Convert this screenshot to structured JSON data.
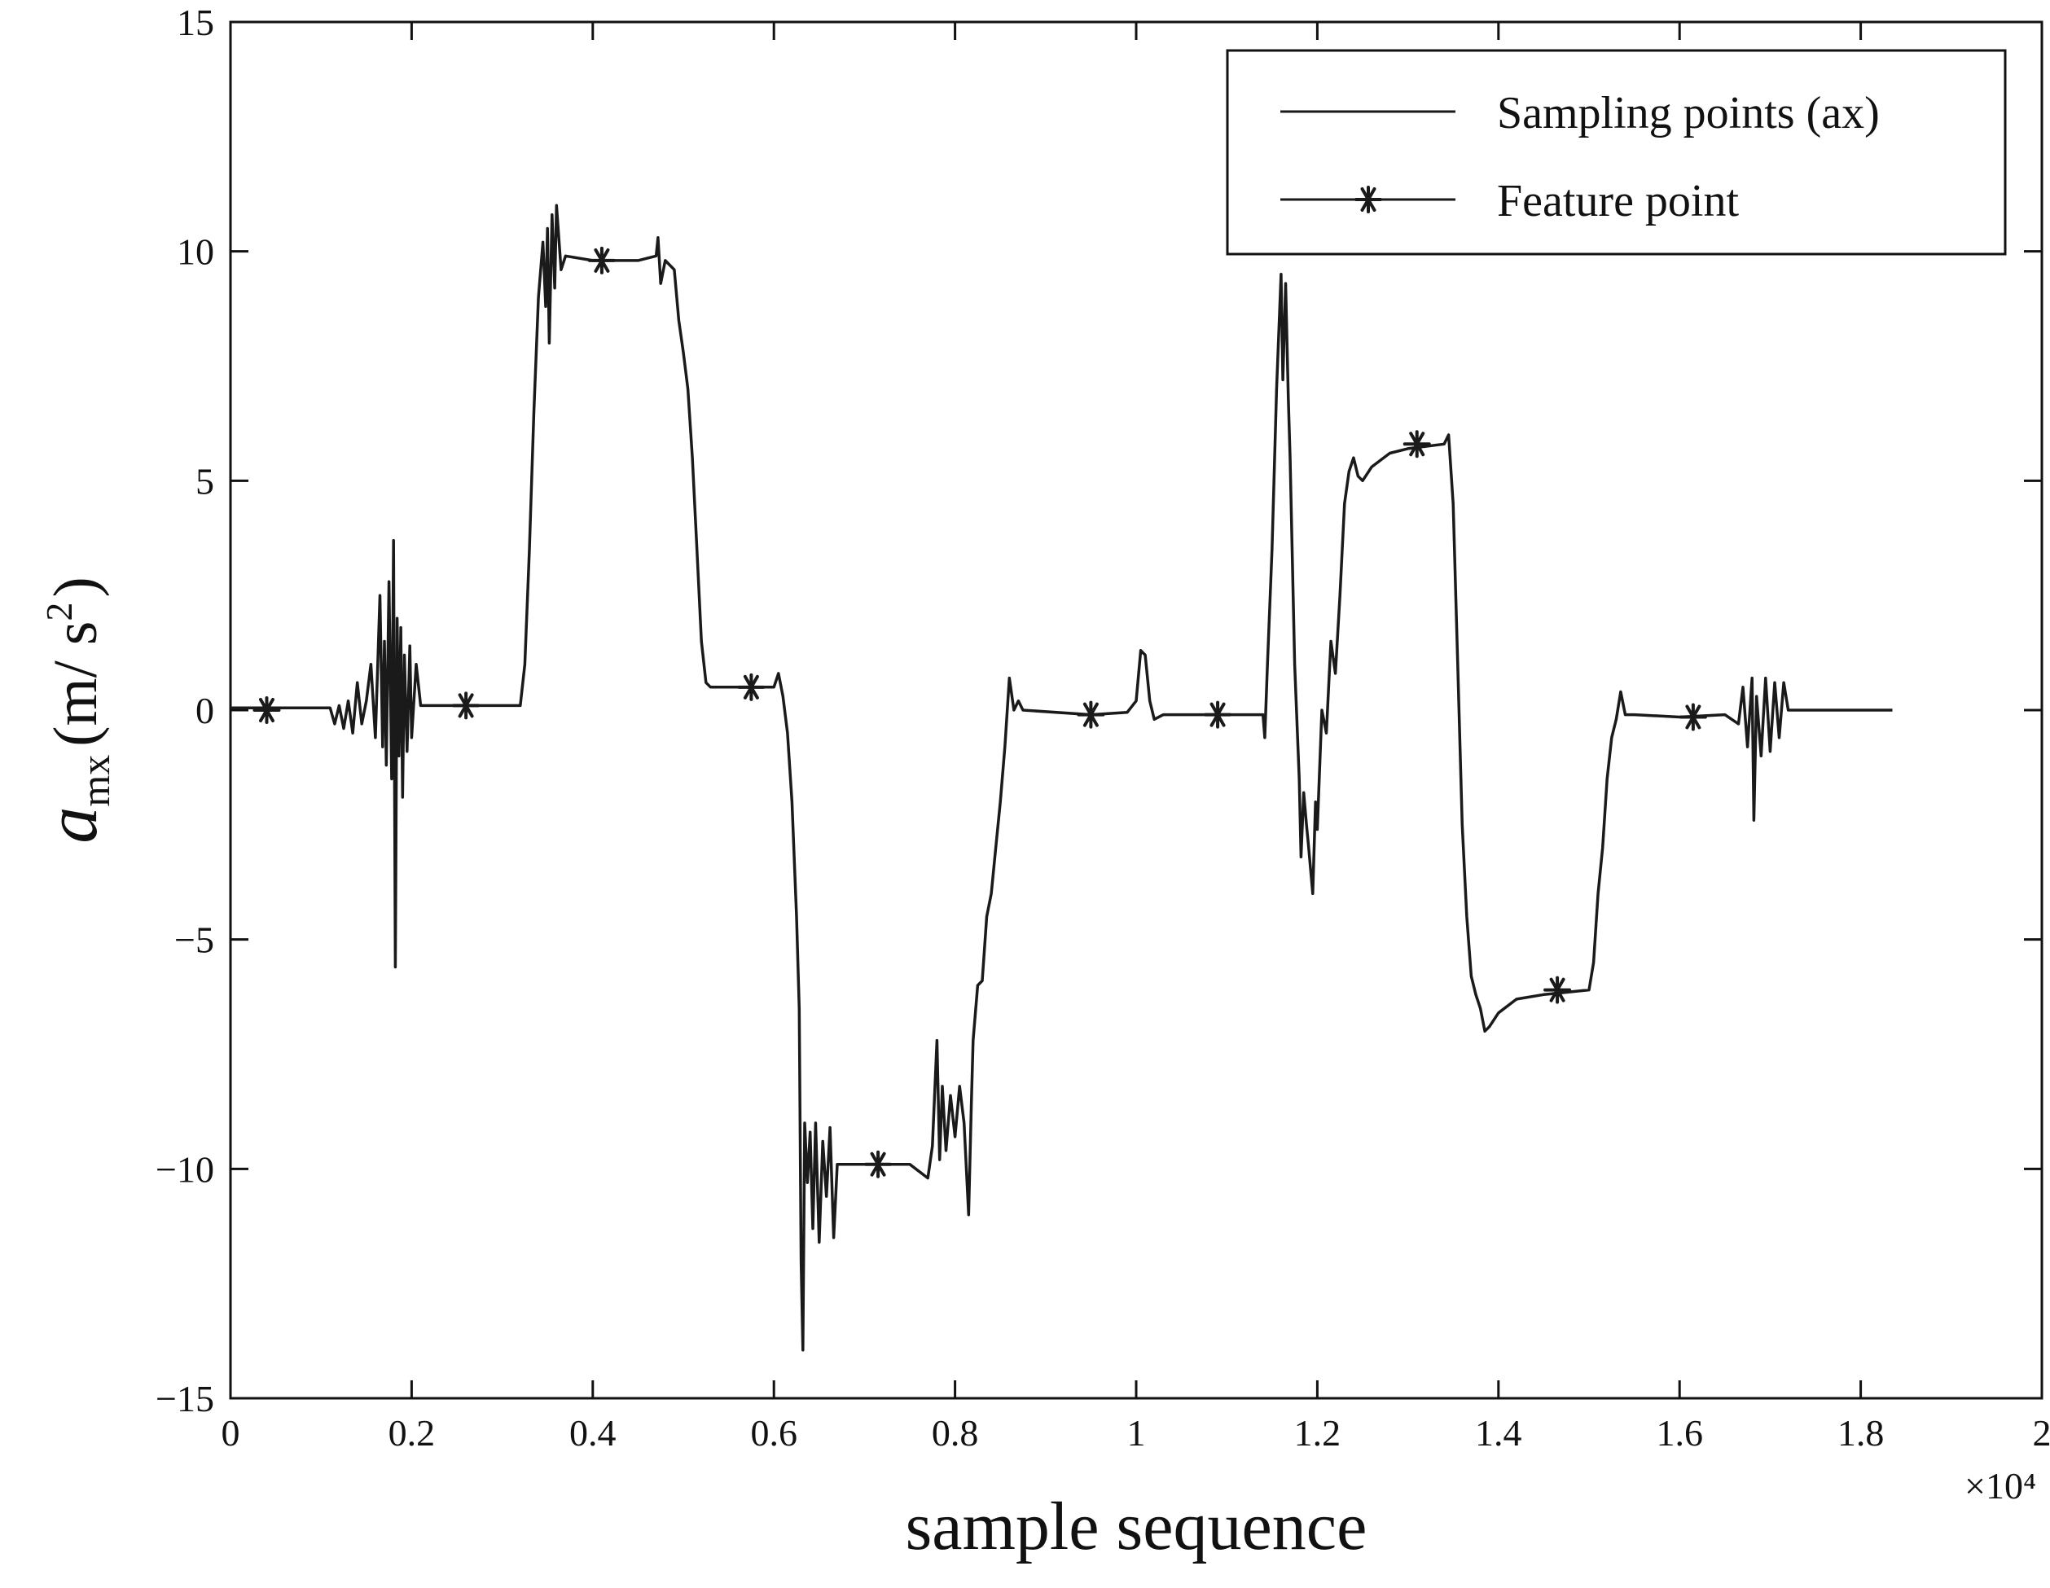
{
  "chart_data": {
    "type": "line",
    "xlabel": "sample sequence",
    "x_multiplier": "×10⁴",
    "ylabel": {
      "symbol": "a",
      "subscript": "mx",
      "unit_open": "(m/ s",
      "unit_superscript": "2",
      "unit_close": ")"
    },
    "xlim": [
      0,
      2
    ],
    "ylim": [
      -15,
      15
    ],
    "x_ticks": [
      0,
      0.2,
      0.4,
      0.6,
      0.8,
      1,
      1.2,
      1.4,
      1.6,
      1.8,
      2
    ],
    "x_tick_labels": [
      "0",
      "0.2",
      "0.4",
      "0.6",
      "0.8",
      "1",
      "1.2",
      "1.4",
      "1.6",
      "1.8",
      "2"
    ],
    "y_ticks": [
      -15,
      -10,
      -5,
      0,
      5,
      10,
      15
    ],
    "y_tick_labels": [
      "−15",
      "−10",
      "−5",
      "0",
      "5",
      "10",
      "15"
    ],
    "grid": false,
    "legend_position": "top-right",
    "colors": {
      "line": "#1a1a1a",
      "axes": "#111111"
    },
    "series": [
      {
        "name": "Sampling points (ax)",
        "style": "line",
        "points": [
          [
            0,
            0.05
          ],
          [
            0.11,
            0.05
          ],
          [
            0.115,
            -0.3
          ],
          [
            0.12,
            0.1
          ],
          [
            0.125,
            -0.4
          ],
          [
            0.13,
            0.2
          ],
          [
            0.135,
            -0.5
          ],
          [
            0.14,
            0.6
          ],
          [
            0.145,
            -0.3
          ],
          [
            0.15,
            0.2
          ],
          [
            0.155,
            1.0
          ],
          [
            0.16,
            -0.6
          ],
          [
            0.165,
            2.5
          ],
          [
            0.168,
            -0.8
          ],
          [
            0.17,
            1.5
          ],
          [
            0.172,
            -1.2
          ],
          [
            0.175,
            2.8
          ],
          [
            0.178,
            -1.5
          ],
          [
            0.18,
            3.7
          ],
          [
            0.182,
            -5.6
          ],
          [
            0.184,
            2.0
          ],
          [
            0.186,
            -1.0
          ],
          [
            0.188,
            1.8
          ],
          [
            0.19,
            -1.9
          ],
          [
            0.192,
            1.2
          ],
          [
            0.195,
            -0.9
          ],
          [
            0.198,
            1.4
          ],
          [
            0.2,
            -0.6
          ],
          [
            0.205,
            1.0
          ],
          [
            0.21,
            0.1
          ],
          [
            0.22,
            0.1
          ],
          [
            0.32,
            0.1
          ],
          [
            0.325,
            1.0
          ],
          [
            0.33,
            3.5
          ],
          [
            0.335,
            6.5
          ],
          [
            0.34,
            9.0
          ],
          [
            0.345,
            10.2
          ],
          [
            0.348,
            8.8
          ],
          [
            0.35,
            10.5
          ],
          [
            0.352,
            8.0
          ],
          [
            0.355,
            10.8
          ],
          [
            0.358,
            9.2
          ],
          [
            0.36,
            11.0
          ],
          [
            0.365,
            9.6
          ],
          [
            0.37,
            9.9
          ],
          [
            0.4,
            9.8
          ],
          [
            0.45,
            9.8
          ],
          [
            0.47,
            9.9
          ],
          [
            0.472,
            10.3
          ],
          [
            0.475,
            9.3
          ],
          [
            0.48,
            9.8
          ],
          [
            0.49,
            9.6
          ],
          [
            0.495,
            8.5
          ],
          [
            0.5,
            7.8
          ],
          [
            0.505,
            7.0
          ],
          [
            0.51,
            5.5
          ],
          [
            0.515,
            3.5
          ],
          [
            0.52,
            1.5
          ],
          [
            0.525,
            0.6
          ],
          [
            0.53,
            0.5
          ],
          [
            0.58,
            0.5
          ],
          [
            0.6,
            0.5
          ],
          [
            0.605,
            0.8
          ],
          [
            0.61,
            0.3
          ],
          [
            0.615,
            -0.5
          ],
          [
            0.62,
            -2.0
          ],
          [
            0.625,
            -4.5
          ],
          [
            0.628,
            -6.5
          ],
          [
            0.63,
            -12.0
          ],
          [
            0.632,
            -13.95
          ],
          [
            0.634,
            -9.0
          ],
          [
            0.637,
            -10.3
          ],
          [
            0.64,
            -9.2
          ],
          [
            0.643,
            -11.3
          ],
          [
            0.646,
            -9.0
          ],
          [
            0.65,
            -11.6
          ],
          [
            0.654,
            -9.4
          ],
          [
            0.658,
            -10.6
          ],
          [
            0.662,
            -9.1
          ],
          [
            0.666,
            -11.5
          ],
          [
            0.67,
            -9.9
          ],
          [
            0.7,
            -9.9
          ],
          [
            0.75,
            -9.9
          ],
          [
            0.77,
            -10.2
          ],
          [
            0.775,
            -9.5
          ],
          [
            0.78,
            -7.2
          ],
          [
            0.783,
            -9.8
          ],
          [
            0.786,
            -8.2
          ],
          [
            0.79,
            -9.6
          ],
          [
            0.795,
            -8.4
          ],
          [
            0.8,
            -9.3
          ],
          [
            0.805,
            -8.2
          ],
          [
            0.81,
            -9.0
          ],
          [
            0.815,
            -11.0
          ],
          [
            0.818,
            -8.6
          ],
          [
            0.82,
            -7.2
          ],
          [
            0.825,
            -6.0
          ],
          [
            0.83,
            -5.9
          ],
          [
            0.835,
            -4.5
          ],
          [
            0.84,
            -4.0
          ],
          [
            0.845,
            -3.0
          ],
          [
            0.85,
            -2.0
          ],
          [
            0.855,
            -0.8
          ],
          [
            0.86,
            0.7
          ],
          [
            0.865,
            0.0
          ],
          [
            0.87,
            0.2
          ],
          [
            0.875,
            0.0
          ],
          [
            0.95,
            -0.1
          ],
          [
            0.99,
            -0.05
          ],
          [
            1.0,
            0.2
          ],
          [
            1.005,
            1.3
          ],
          [
            1.01,
            1.2
          ],
          [
            1.015,
            0.2
          ],
          [
            1.02,
            -0.2
          ],
          [
            1.03,
            -0.1
          ],
          [
            1.1,
            -0.1
          ],
          [
            1.14,
            -0.1
          ],
          [
            1.142,
            -0.6
          ],
          [
            1.145,
            1.0
          ],
          [
            1.15,
            3.5
          ],
          [
            1.155,
            7.0
          ],
          [
            1.16,
            9.5
          ],
          [
            1.162,
            7.2
          ],
          [
            1.165,
            9.3
          ],
          [
            1.168,
            6.8
          ],
          [
            1.17,
            5.5
          ],
          [
            1.175,
            1.0
          ],
          [
            1.18,
            -1.5
          ],
          [
            1.182,
            -3.2
          ],
          [
            1.185,
            -1.8
          ],
          [
            1.188,
            -2.5
          ],
          [
            1.19,
            -2.9
          ],
          [
            1.195,
            -4.0
          ],
          [
            1.198,
            -2.0
          ],
          [
            1.2,
            -2.6
          ],
          [
            1.205,
            0.0
          ],
          [
            1.21,
            -0.5
          ],
          [
            1.215,
            1.5
          ],
          [
            1.22,
            0.8
          ],
          [
            1.225,
            2.5
          ],
          [
            1.23,
            4.5
          ],
          [
            1.235,
            5.2
          ],
          [
            1.24,
            5.5
          ],
          [
            1.245,
            5.1
          ],
          [
            1.25,
            5.0
          ],
          [
            1.26,
            5.3
          ],
          [
            1.28,
            5.6
          ],
          [
            1.3,
            5.7
          ],
          [
            1.34,
            5.8
          ],
          [
            1.345,
            6.0
          ],
          [
            1.35,
            4.5
          ],
          [
            1.355,
            1.0
          ],
          [
            1.36,
            -2.5
          ],
          [
            1.365,
            -4.5
          ],
          [
            1.37,
            -5.8
          ],
          [
            1.375,
            -6.2
          ],
          [
            1.38,
            -6.5
          ],
          [
            1.385,
            -7.0
          ],
          [
            1.39,
            -6.9
          ],
          [
            1.4,
            -6.6
          ],
          [
            1.42,
            -6.3
          ],
          [
            1.45,
            -6.2
          ],
          [
            1.5,
            -6.1
          ],
          [
            1.505,
            -5.5
          ],
          [
            1.51,
            -4.0
          ],
          [
            1.515,
            -3.0
          ],
          [
            1.52,
            -1.5
          ],
          [
            1.525,
            -0.6
          ],
          [
            1.53,
            -0.2
          ],
          [
            1.535,
            0.4
          ],
          [
            1.54,
            -0.1
          ],
          [
            1.55,
            -0.1
          ],
          [
            1.6,
            -0.15
          ],
          [
            1.65,
            -0.1
          ],
          [
            1.665,
            -0.3
          ],
          [
            1.67,
            0.5
          ],
          [
            1.675,
            -0.8
          ],
          [
            1.68,
            0.7
          ],
          [
            1.682,
            -2.4
          ],
          [
            1.685,
            0.3
          ],
          [
            1.69,
            -1.0
          ],
          [
            1.695,
            0.7
          ],
          [
            1.7,
            -0.9
          ],
          [
            1.705,
            0.6
          ],
          [
            1.71,
            -0.6
          ],
          [
            1.715,
            0.6
          ],
          [
            1.72,
            0.0
          ],
          [
            1.73,
            0.0
          ],
          [
            1.835,
            0.0
          ]
        ]
      },
      {
        "name": "Feature point",
        "style": "line-star",
        "points": [
          [
            0.04,
            0.0
          ],
          [
            0.26,
            0.1
          ],
          [
            0.41,
            9.8
          ],
          [
            0.575,
            0.5
          ],
          [
            0.715,
            -9.9
          ],
          [
            0.95,
            -0.1
          ],
          [
            1.09,
            -0.1
          ],
          [
            1.31,
            5.8
          ],
          [
            1.465,
            -6.1
          ],
          [
            1.615,
            -0.15
          ]
        ]
      }
    ]
  }
}
